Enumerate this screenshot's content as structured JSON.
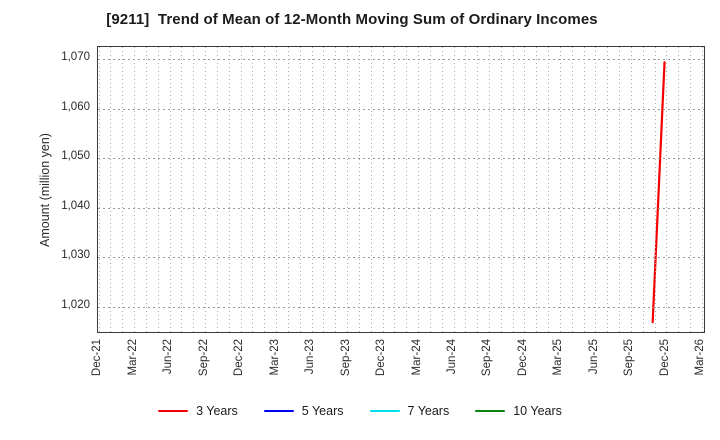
{
  "chart_data": {
    "type": "line",
    "title": "[9211]  Trend of Mean of 12-Month Moving Sum of Ordinary Incomes",
    "ylabel": "Amount (million yen)",
    "xlabel": "",
    "x_tick_labels": [
      "Dec-21",
      "Mar-22",
      "Jun-22",
      "Sep-22",
      "Dec-22",
      "Mar-23",
      "Jun-23",
      "Sep-23",
      "Dec-23",
      "Mar-24",
      "Jun-24",
      "Sep-24",
      "Dec-24",
      "Mar-25",
      "Jun-25",
      "Sep-25",
      "Dec-25",
      "Mar-26"
    ],
    "x_tick_interval_months": 3,
    "y_ticks": [
      1020,
      1030,
      1040,
      1050,
      1060,
      1070
    ],
    "y_tick_labels": [
      "1,020",
      "1,030",
      "1,040",
      "1,050",
      "1,060",
      "1,070"
    ],
    "ylim": [
      1014.5,
      1072.5
    ],
    "xlim_months": [
      -0.05,
      51.35
    ],
    "grid": {
      "show": true,
      "style": "dotted",
      "vertical_every_months": 1,
      "color": "#a8a8a8"
    },
    "legend_position": "bottom-center",
    "series": [
      {
        "name": "3 Years",
        "color": "#f40000",
        "points": [
          {
            "x": "Nov-25",
            "y": 1016.5
          },
          {
            "x": "Dec-25",
            "y": 1069.4
          }
        ]
      },
      {
        "name": "5 Years",
        "color": "#0000f4",
        "points": []
      },
      {
        "name": "7 Years",
        "color": "#00e0e8",
        "points": []
      },
      {
        "name": "10 Years",
        "color": "#0d820d",
        "points": []
      }
    ]
  }
}
